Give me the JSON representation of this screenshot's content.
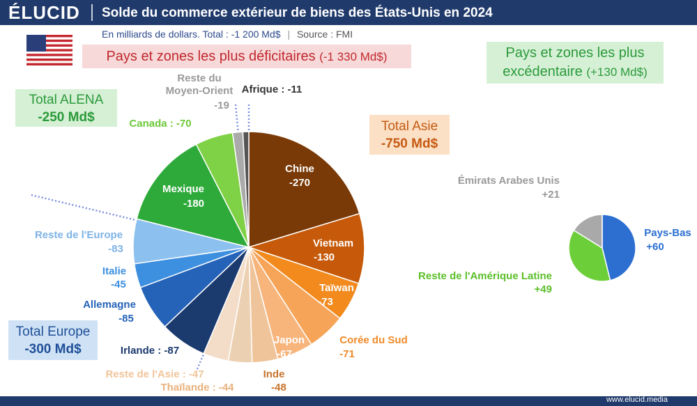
{
  "header": {
    "brand": "ÉLUCID",
    "title": "Solde du commerce extérieur de biens des États-Unis en 2024",
    "subtitle": "En milliards de dollars. Total : -1 200 Md$",
    "source": "Source : FMI"
  },
  "chart_data": [
    {
      "type": "pie",
      "title": "Pays et zones les plus déficitaires",
      "total_label": "(-1 330 Md$)",
      "categories": [
        "Chine",
        "Vietnam",
        "Taïwan",
        "Corée du Sud",
        "Japon",
        "Inde",
        "Thaïlande : -44",
        "Reste de l'Asie : -47",
        "Irlande : -87",
        "Allemagne",
        "Italie",
        "Reste de l'Europe",
        "Mexique",
        "Canada : -70",
        "Reste du Moyen-Orient",
        "Afrique : -11"
      ],
      "values": [
        -270,
        -130,
        -73,
        -71,
        -67,
        -48,
        -44,
        -47,
        -87,
        -85,
        -45,
        -83,
        -180,
        -70,
        -19,
        -11
      ],
      "value_labels": [
        "-270",
        "-130",
        "-73",
        "-71",
        "-67",
        "-48",
        null,
        null,
        null,
        "-85",
        "-45",
        "-83",
        "-180",
        null,
        "-19",
        null
      ],
      "colors": [
        "#7a3a08",
        "#c65a0a",
        "#f28a1e",
        "#f6a458",
        "#f7b57c",
        "#f0c49a",
        "#ecd0b2",
        "#f3dcc8",
        "#1b3a6e",
        "#2563b8",
        "#3d8fe0",
        "#8cc0ee",
        "#2eaa3a",
        "#7fd145",
        "#aaaaaa",
        "#555555"
      ],
      "annotations": [
        {
          "title": "Total ALENA",
          "text": "-250 Md$"
        },
        {
          "title": "Total Asie",
          "text": "-750 Md$"
        },
        {
          "title": "Total Europe",
          "text": "-300 Md$"
        }
      ]
    },
    {
      "type": "pie",
      "title": "Pays et zones les plus excédentaire",
      "total_label": "(+130 Md$)",
      "categories": [
        "Pays-Bas",
        "Reste de l'Amérique Latine",
        "Émirats Arabes Unis"
      ],
      "values": [
        60,
        49,
        21
      ],
      "value_labels": [
        "+60",
        "+49",
        "+21"
      ],
      "colors": [
        "#2c6fd1",
        "#6ccf3a",
        "#a9a9a9"
      ]
    }
  ],
  "footer": "www.elucid.media"
}
